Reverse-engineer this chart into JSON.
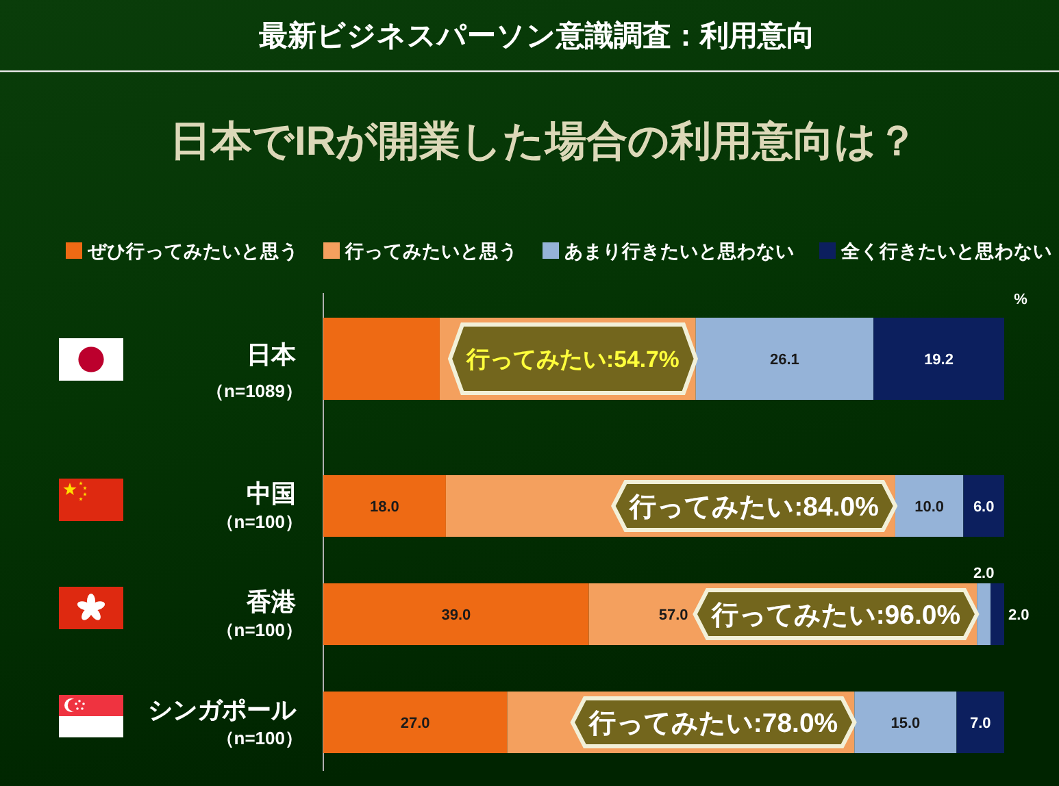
{
  "chart_data": {
    "type": "bar",
    "orientation": "horizontal",
    "stacked": true,
    "title": "最新ビジネスパーソン意識調査：利用意向",
    "subtitle": "日本でIRが開業した場合の利用意向は？",
    "xlabel": "%",
    "categories": [
      "日本（n=1089）",
      "中国（n=100）",
      "香港（n=100）",
      "シンガポール（n=100）"
    ],
    "xlim": [
      0,
      100
    ],
    "tick_labels": "y",
    "legend": "top",
    "series": [
      {
        "name": "ぜひ行ってみたいと思う",
        "color": "#ee6a14",
        "values": [
          17.1,
          18.0,
          39.0,
          27.0
        ],
        "value_labels": [
          null,
          "18.0",
          "39.0",
          "27.0"
        ]
      },
      {
        "name": "行ってみたいと思う",
        "color": "#f4a05e",
        "values": [
          37.6,
          66.0,
          57.0,
          51.0
        ],
        "value_labels": [
          null,
          null,
          "57.0",
          null
        ]
      },
      {
        "name": "あまり行きたいと思わない",
        "color": "#95b3d8",
        "values": [
          26.1,
          10.0,
          2.0,
          15.0
        ],
        "value_labels": [
          "26.1",
          "10.0",
          "2.0",
          "15.0"
        ]
      },
      {
        "name": "全く行きたいと思わない",
        "color": "#0c1f5e",
        "values": [
          19.2,
          6.0,
          2.0,
          7.0
        ],
        "value_labels": [
          "19.2",
          "6.0",
          "2.0",
          "7.0"
        ]
      }
    ],
    "annotations": [
      {
        "text": "行ってみたい:54.7%",
        "x": 54.7,
        "y": "日本（n=1089）"
      },
      {
        "text": "行ってみたい:84.0%",
        "x": 84.0,
        "y": "中国（n=100）"
      },
      {
        "text": "行ってみたい:96.0%",
        "x": 96.0,
        "y": "香港（n=100）"
      },
      {
        "text": "行ってみたい:78.0%",
        "x": 78.0,
        "y": "シンガポール（n=100）"
      }
    ]
  }
}
